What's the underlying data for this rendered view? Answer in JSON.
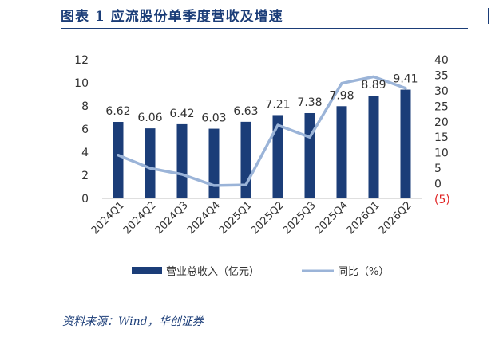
{
  "header": {
    "title": "图表 1    应流股份单季度营收及增速"
  },
  "footer": {
    "source": "资料来源：Wind，华创证券"
  },
  "chart_data": {
    "type": "bar",
    "categories": [
      "2024Q1",
      "2024Q2",
      "2024Q3",
      "2024Q4",
      "2025Q1",
      "2025Q2",
      "2025Q3",
      "2025Q4",
      "2026Q1",
      "2026Q2"
    ],
    "series": [
      {
        "name": "营业总收入（亿元）",
        "type": "bar",
        "axis": "left",
        "color": "#1b3d78",
        "values": [
          6.62,
          6.06,
          6.42,
          6.03,
          6.63,
          7.21,
          7.38,
          7.98,
          8.89,
          9.41
        ],
        "labels": [
          "6.62",
          "6.06",
          "6.42",
          "6.03",
          "6.63",
          "7.21",
          "7.38",
          "7.98",
          "8.89",
          "9.41"
        ]
      },
      {
        "name": "同比（%）",
        "type": "line",
        "axis": "right",
        "color": "#9bb4d8",
        "values": [
          9.2,
          5.0,
          3.0,
          -0.6,
          -0.4,
          18.9,
          15.0,
          32.4,
          34.5,
          30.8
        ]
      }
    ],
    "left_axis": {
      "min": 0,
      "max": 12,
      "ticks": [
        "0",
        "2",
        "4",
        "6",
        "8",
        "10",
        "12"
      ]
    },
    "right_axis": {
      "min": -5,
      "max": 40,
      "ticks": [
        "(5)",
        "0",
        "5",
        "10",
        "15",
        "20",
        "25",
        "30",
        "35",
        "40"
      ],
      "negative_color": "#e02020"
    },
    "legend": {
      "position": "bottom"
    },
    "grid": false
  }
}
